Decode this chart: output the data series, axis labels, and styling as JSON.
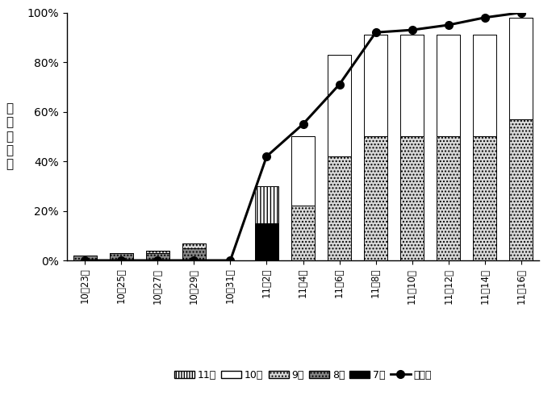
{
  "categories": [
    "10月23日",
    "10月25日",
    "10月27日",
    "10月29日",
    "10月31日",
    "11月2日",
    "11月4日",
    "11月6日",
    "11月8日",
    "11月10日",
    "11月12日",
    "11月14日",
    "11月16日"
  ],
  "series": {
    "7枚": [
      0,
      0,
      0,
      0,
      0,
      15,
      0,
      0,
      0,
      0,
      0,
      0,
      0
    ],
    "8枚": [
      2,
      3,
      3,
      5,
      0,
      0,
      0,
      0,
      0,
      0,
      0,
      0,
      0
    ],
    "9枚": [
      0,
      0,
      1,
      2,
      0,
      0,
      22,
      42,
      50,
      50,
      50,
      50,
      57
    ],
    "10枚": [
      0,
      0,
      0,
      0,
      0,
      0,
      28,
      41,
      41,
      41,
      41,
      41,
      41
    ],
    "11枚": [
      0,
      0,
      0,
      0,
      0,
      15,
      0,
      0,
      0,
      0,
      0,
      0,
      0
    ]
  },
  "line_values": [
    0,
    0,
    0,
    0,
    0,
    42,
    55,
    71,
    92,
    93,
    95,
    98,
    100
  ],
  "colors": {
    "11枚": {
      "facecolor": "#ffffff",
      "hatch": "||||"
    },
    "10枚": {
      "facecolor": "#ffffff",
      "hatch": ""
    },
    "9枚": {
      "facecolor": "#d8d8d8",
      "hatch": "...."
    },
    "8枚": {
      "facecolor": "#888888",
      "hatch": "...."
    },
    "7枚": {
      "facecolor": "#000000",
      "hatch": ""
    }
  },
  "ylabel": "累\n積\n収\n穫\n率",
  "ylim": [
    0,
    100
  ],
  "yticks": [
    0,
    20,
    40,
    60,
    80,
    100
  ],
  "ytick_labels": [
    "0%",
    "20%",
    "40%",
    "60%",
    "80%",
    "100%"
  ],
  "legend_labels": [
    "11枚",
    "10枚",
    "9枚",
    "8枚",
    "7枚",
    "予測値"
  ]
}
